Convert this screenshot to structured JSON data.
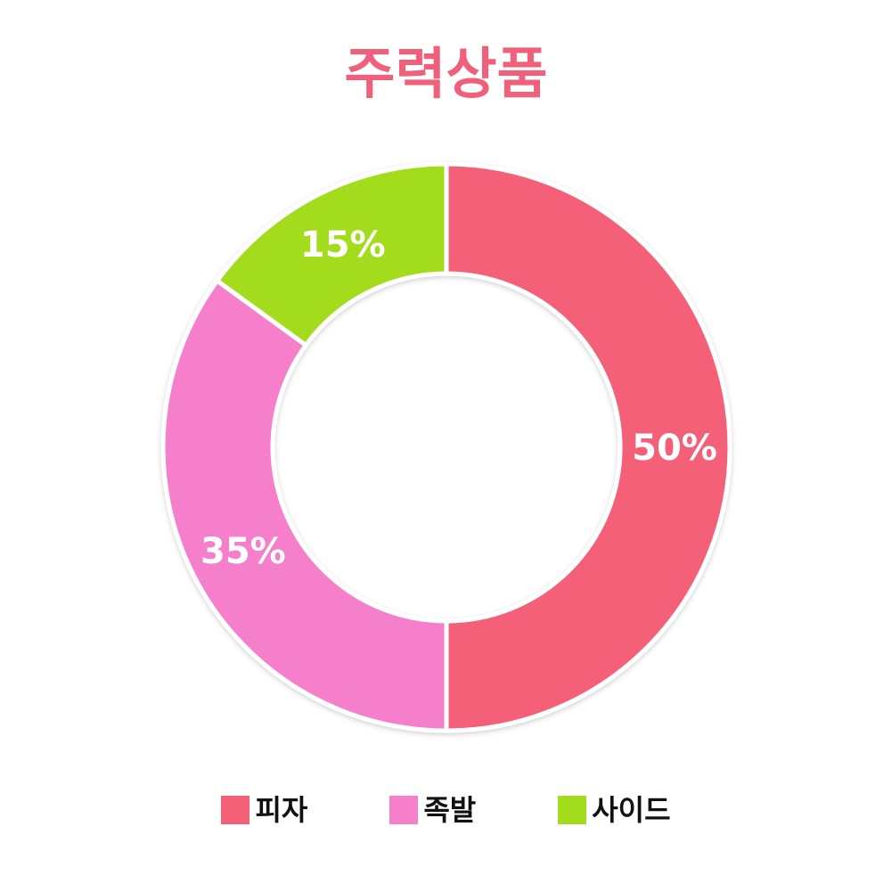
{
  "colors": {
    "title": "#f0607a",
    "background": "#ffffff",
    "separator": "#ffffff",
    "label_text": "#ffffff"
  },
  "chart_data": {
    "type": "pie",
    "variant": "donut",
    "title": "주력상품",
    "categories": [
      "피자",
      "족발",
      "사이드"
    ],
    "values": [
      50,
      35,
      15
    ],
    "value_labels": [
      "50%",
      "35%",
      "15%"
    ],
    "slice_colors": [
      "#f46177",
      "#f67fcb",
      "#a3dc1c"
    ],
    "legend_position": "bottom",
    "start": "top, clockwise"
  }
}
